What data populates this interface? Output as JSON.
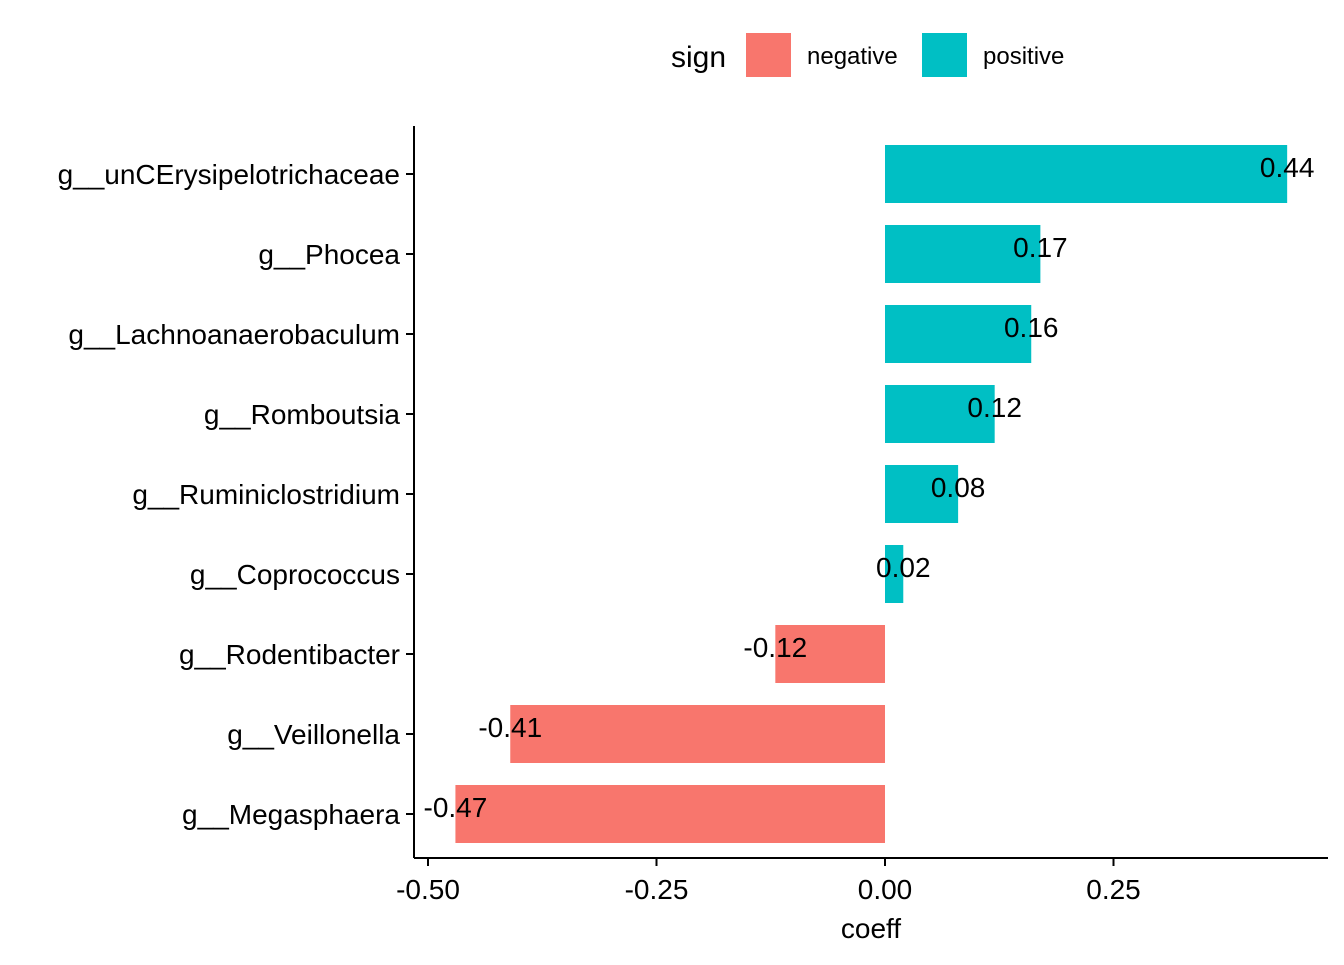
{
  "chart_data": {
    "type": "bar",
    "orientation": "horizontal",
    "title": "",
    "xlabel": "coeff",
    "ylabel": "",
    "xlim": [
      -0.5,
      0.45
    ],
    "x_ticks": [
      -0.5,
      -0.25,
      0.0,
      0.25
    ],
    "x_tick_labels": [
      "-0.50",
      "-0.25",
      "0.00",
      "0.25"
    ],
    "grid": false,
    "legend": {
      "title": "sign",
      "placement": "top",
      "entries": [
        {
          "name": "negative",
          "color": "#F8766D"
        },
        {
          "name": "positive",
          "color": "#00BFC4"
        }
      ]
    },
    "categories": [
      "g__unCErysipelotrichaceae",
      "g__Phocea",
      "g__Lachnoanaerobaculum",
      "g__Romboutsia",
      "g__Ruminiclostridium",
      "g__Coprococcus",
      "g__Rodentibacter",
      "g__Veillonella",
      "g__Megasphaera"
    ],
    "values": [
      0.44,
      0.17,
      0.16,
      0.12,
      0.08,
      0.02,
      -0.12,
      -0.41,
      -0.47
    ],
    "value_labels": [
      "0.44",
      "0.17",
      "0.16",
      "0.12",
      "0.08",
      "0.02",
      "-0.12",
      "-0.41",
      "-0.47"
    ],
    "signs": [
      "positive",
      "positive",
      "positive",
      "positive",
      "positive",
      "positive",
      "negative",
      "negative",
      "negative"
    ]
  }
}
